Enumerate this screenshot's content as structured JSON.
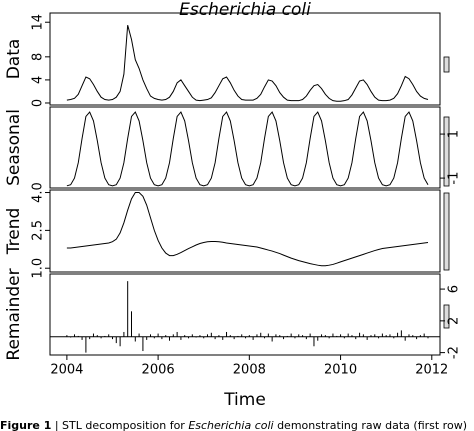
{
  "chart_data": {
    "type": "stl",
    "title": "Escherichia coli",
    "xlabel": "Time",
    "xlim": [
      2003.63,
      2012.18
    ],
    "xticks": [
      2004,
      2006,
      2008,
      2010,
      2012
    ],
    "x": [
      2004,
      2004.083,
      2004.167,
      2004.25,
      2004.333,
      2004.417,
      2004.5,
      2004.583,
      2004.667,
      2004.75,
      2004.833,
      2004.917,
      2005,
      2005.083,
      2005.167,
      2005.25,
      2005.333,
      2005.417,
      2005.5,
      2005.583,
      2005.667,
      2005.75,
      2005.833,
      2005.917,
      2006,
      2006.083,
      2006.167,
      2006.25,
      2006.333,
      2006.417,
      2006.5,
      2006.583,
      2006.667,
      2006.75,
      2006.833,
      2006.917,
      2007,
      2007.083,
      2007.167,
      2007.25,
      2007.333,
      2007.417,
      2007.5,
      2007.583,
      2007.667,
      2007.75,
      2007.833,
      2007.917,
      2008,
      2008.083,
      2008.167,
      2008.25,
      2008.333,
      2008.417,
      2008.5,
      2008.583,
      2008.667,
      2008.75,
      2008.833,
      2008.917,
      2009,
      2009.083,
      2009.167,
      2009.25,
      2009.333,
      2009.417,
      2009.5,
      2009.583,
      2009.667,
      2009.75,
      2009.833,
      2009.917,
      2010,
      2010.083,
      2010.167,
      2010.25,
      2010.333,
      2010.417,
      2010.5,
      2010.583,
      2010.667,
      2010.75,
      2010.833,
      2010.917,
      2011,
      2011.083,
      2011.167,
      2011.25,
      2011.333,
      2011.417,
      2011.5,
      2011.583,
      2011.667,
      2011.75,
      2011.833,
      2011.917
    ],
    "panels": [
      {
        "name": "Data",
        "type": "line",
        "axis_side": "left",
        "ylim": [
          -0.35,
          15.6
        ],
        "yticks": [
          0,
          4,
          8,
          14
        ],
        "values": [
          0.5,
          0.6,
          0.8,
          1.5,
          3,
          4.5,
          4.2,
          3.2,
          2,
          1,
          0.6,
          0.5,
          0.6,
          1,
          2,
          5,
          13.5,
          11,
          7.5,
          6,
          4,
          2.5,
          1.2,
          0.8,
          0.6,
          0.5,
          0.6,
          1,
          2,
          3.5,
          4,
          3,
          2,
          1,
          0.5,
          0.4,
          0.5,
          0.6,
          0.9,
          1.8,
          3,
          4.2,
          4.5,
          3.5,
          2.2,
          1.2,
          0.6,
          0.5,
          0.5,
          0.5,
          0.8,
          1.5,
          2.8,
          4,
          3.8,
          3,
          1.8,
          1,
          0.5,
          0.4,
          0.4,
          0.4,
          0.6,
          1.2,
          2.2,
          3,
          3.2,
          2.5,
          1.5,
          0.8,
          0.4,
          0.3,
          0.3,
          0.4,
          0.6,
          1.4,
          2.6,
          3.8,
          4,
          3.2,
          2,
          1,
          0.5,
          0.4,
          0.4,
          0.5,
          0.8,
          1.6,
          3,
          4.6,
          4.2,
          3.2,
          2,
          1.2,
          0.8,
          0.6
        ]
      },
      {
        "name": "Seasonal",
        "type": "line",
        "axis_side": "right",
        "ylim": [
          -1.45,
          2.23
        ],
        "yticks": [
          -1,
          1
        ],
        "values": [
          -1.35,
          -1.3,
          -1,
          -0.3,
          0.8,
          1.8,
          2,
          1.6,
          0.7,
          -0.3,
          -1,
          -1.3,
          -1.35,
          -1.3,
          -1,
          -0.3,
          0.8,
          1.8,
          2,
          1.6,
          0.7,
          -0.3,
          -1,
          -1.3,
          -1.35,
          -1.3,
          -1,
          -0.3,
          0.8,
          1.8,
          2,
          1.6,
          0.7,
          -0.3,
          -1,
          -1.3,
          -1.35,
          -1.3,
          -1,
          -0.3,
          0.8,
          1.8,
          2,
          1.6,
          0.7,
          -0.3,
          -1,
          -1.3,
          -1.35,
          -1.3,
          -1,
          -0.3,
          0.8,
          1.8,
          2,
          1.6,
          0.7,
          -0.3,
          -1,
          -1.3,
          -1.35,
          -1.3,
          -1,
          -0.3,
          0.8,
          1.8,
          2,
          1.6,
          0.7,
          -0.3,
          -1,
          -1.3,
          -1.35,
          -1.3,
          -1,
          -0.3,
          0.8,
          1.8,
          2,
          1.6,
          0.7,
          -0.3,
          -1,
          -1.3,
          -1.35,
          -1.3,
          -1,
          -0.3,
          0.8,
          1.8,
          2,
          1.6,
          0.7,
          -0.3,
          -1,
          -1.3
        ]
      },
      {
        "name": "Trend",
        "type": "line",
        "axis_side": "left",
        "ylim": [
          0.85,
          4.1
        ],
        "yticks": [
          {
            "value": 1,
            "label": "1.0"
          },
          {
            "value": 2.5,
            "label": "2.5"
          },
          {
            "value": 4,
            "label": "4.0"
          }
        ],
        "values": [
          1.8,
          1.8,
          1.82,
          1.84,
          1.86,
          1.88,
          1.9,
          1.92,
          1.94,
          1.96,
          1.98,
          2,
          2.05,
          2.15,
          2.4,
          2.8,
          3.3,
          3.75,
          4,
          4,
          3.85,
          3.5,
          3,
          2.5,
          2.1,
          1.8,
          1.6,
          1.5,
          1.5,
          1.55,
          1.62,
          1.7,
          1.78,
          1.85,
          1.92,
          1.98,
          2.02,
          2.05,
          2.06,
          2.06,
          2.05,
          2.03,
          2,
          1.98,
          1.96,
          1.94,
          1.92,
          1.9,
          1.88,
          1.86,
          1.84,
          1.8,
          1.76,
          1.72,
          1.68,
          1.63,
          1.58,
          1.52,
          1.46,
          1.4,
          1.35,
          1.3,
          1.26,
          1.22,
          1.18,
          1.15,
          1.12,
          1.1,
          1.1,
          1.12,
          1.15,
          1.2,
          1.25,
          1.3,
          1.35,
          1.4,
          1.45,
          1.5,
          1.55,
          1.6,
          1.65,
          1.7,
          1.74,
          1.78,
          1.8,
          1.82,
          1.84,
          1.86,
          1.88,
          1.9,
          1.92,
          1.94,
          1.96,
          1.98,
          2,
          2.02
        ]
      },
      {
        "name": "Remainder",
        "type": "spikes",
        "axis_side": "right",
        "ylim": [
          -2.3,
          7.9
        ],
        "yticks": [
          -2,
          2,
          6
        ],
        "values": [
          0.2,
          -0.1,
          0.3,
          0.1,
          -0.4,
          -2,
          -0.3,
          0.4,
          0.2,
          -0.2,
          0.1,
          0.3,
          -0.3,
          -0.8,
          -1.2,
          0.6,
          7,
          3.2,
          -0.6,
          0.4,
          -1.8,
          -0.4,
          0.3,
          -0.2,
          0.4,
          -0.3,
          0.2,
          -0.5,
          0.3,
          0.6,
          -0.4,
          0.2,
          -0.2,
          0.3,
          -0.1,
          0.2,
          -0.2,
          0.3,
          0.5,
          -0.3,
          0.2,
          -0.4,
          0.6,
          0.2,
          -0.3,
          0.1,
          0.3,
          -0.2,
          0.2,
          -0.4,
          0.3,
          0.5,
          -0.2,
          0.4,
          -0.6,
          0.3,
          0.2,
          -0.3,
          0.1,
          0.4,
          -0.2,
          0.3,
          0.2,
          -0.3,
          0.4,
          -1.2,
          -0.5,
          0.3,
          0.2,
          -0.2,
          0.4,
          0.1,
          0.3,
          -0.2,
          0.4,
          0.2,
          -0.3,
          0.5,
          0.3,
          -0.4,
          0.2,
          0.3,
          -0.2,
          0.4,
          0.2,
          0.3,
          -0.2,
          0.5,
          0.8,
          -0.5,
          0.3,
          0.2,
          -0.3,
          0.2,
          0.4,
          -0.2
        ]
      }
    ]
  },
  "caption": {
    "label": "Figure 1",
    "text1": " | STL decomposition for ",
    "species": "Escherichia coli",
    "text2": " demonstrating raw data (first row)"
  }
}
